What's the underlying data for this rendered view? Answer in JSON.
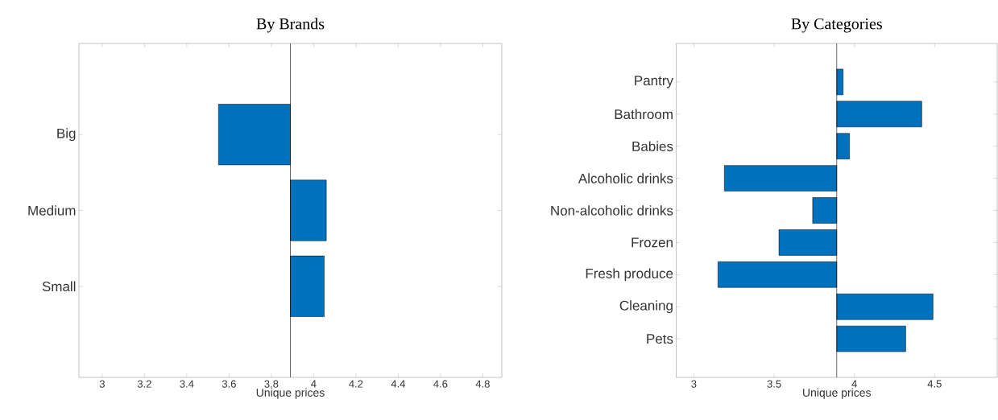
{
  "chart_data": [
    {
      "type": "bar",
      "orientation": "horizontal",
      "title": "By Brands",
      "xlabel": "Unique prices",
      "categories": [
        "Big",
        "Medium",
        "Small"
      ],
      "base": [
        3.89,
        3.89,
        3.89
      ],
      "values": [
        -0.34,
        0.17,
        0.16
      ],
      "color": "#0072bd",
      "xlim": [
        2.89,
        4.89
      ],
      "xticks": [
        3,
        3.2,
        3.4,
        3.6,
        3.8,
        4,
        4.2,
        4.4,
        4.6,
        4.8
      ],
      "ref_lines": [
        {
          "axis": "x",
          "value": 3.89,
          "color": "#000000"
        }
      ]
    },
    {
      "type": "bar",
      "orientation": "horizontal",
      "title": "By Categories",
      "xlabel": "Unique prices",
      "categories": [
        "Pantry",
        "Bathroom",
        "Babies",
        "Alcoholic drinks",
        "Non-alcoholic drinks",
        "Frozen",
        "Fresh produce",
        "Cleaning",
        "Pets"
      ],
      "base": [
        3.89,
        3.89,
        3.89,
        3.89,
        3.89,
        3.89,
        3.89,
        3.89,
        3.89
      ],
      "values": [
        0.04,
        0.53,
        0.08,
        -0.7,
        -0.15,
        -0.36,
        -0.74,
        0.6,
        0.43
      ],
      "color": "#0072bd",
      "xlim": [
        2.89,
        4.89
      ],
      "xticks": [
        3,
        3.5,
        4,
        4.5
      ],
      "ref_lines": [
        {
          "axis": "x",
          "value": 3.89,
          "color": "#000000"
        }
      ]
    }
  ]
}
